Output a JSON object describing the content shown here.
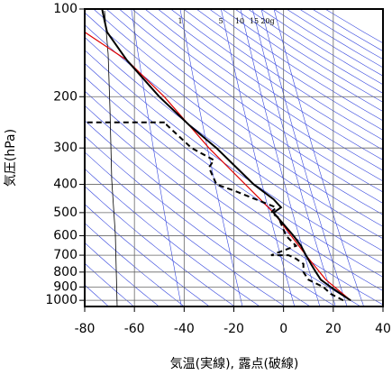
{
  "chart_data": {
    "type": "line",
    "xlabel": "気温(実線), 露点(破線)",
    "ylabel": "気圧(hPa)",
    "annotations": [
      "1",
      "5",
      "10",
      "15",
      "20g"
    ],
    "xlim": [
      -80,
      40
    ],
    "xticks": [
      -80,
      -60,
      -40,
      -20,
      0,
      20,
      40
    ],
    "ylim": [
      1050,
      100
    ],
    "ylog": true,
    "yticks": [
      100,
      200,
      300,
      400,
      500,
      600,
      700,
      800,
      900,
      1000
    ],
    "grid": true,
    "series": [
      {
        "color": "#e00000",
        "dash": false,
        "pressure": [
          1000,
          850,
          700,
          500,
          300,
          200,
          150,
          120
        ],
        "values": [
          27,
          17,
          9,
          -4,
          -30,
          -48,
          -63,
          -80
        ]
      },
      {
        "color": "#000000",
        "dash": true,
        "pressure": [
          1000,
          950,
          900,
          850,
          800,
          750,
          720,
          700,
          700,
          650,
          600,
          520,
          500,
          480,
          420,
          400,
          350,
          330,
          300,
          250,
          245,
          245
        ],
        "values": [
          24,
          19,
          16,
          10,
          8,
          8,
          5,
          2,
          -5,
          5,
          1,
          -2,
          -5,
          -3,
          -20,
          -27,
          -30,
          -28,
          -37,
          -47,
          -47,
          -82
        ]
      },
      {
        "color": "#000000",
        "dash": false,
        "pressure": [
          1000,
          950,
          900,
          850,
          800,
          750,
          700,
          650,
          600,
          500,
          480,
          450,
          400,
          300,
          250,
          200,
          150,
          120,
          110,
          100
        ],
        "values": [
          27,
          23,
          19,
          15,
          13,
          11,
          9,
          7,
          4,
          -4,
          -1,
          -4,
          -12,
          -27,
          -38,
          -50,
          -63,
          -71,
          -72,
          -73
        ]
      }
    ]
  }
}
